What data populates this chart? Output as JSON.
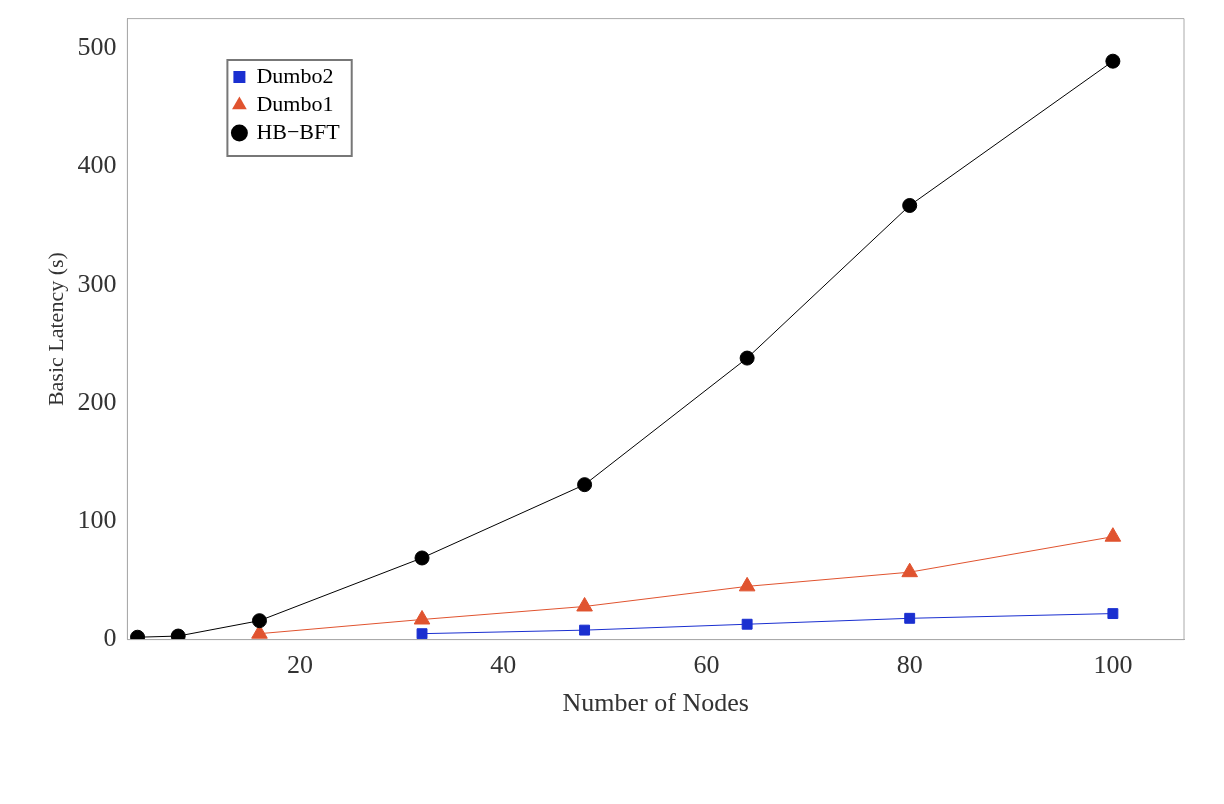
{
  "chart_data": {
    "type": "line",
    "xlabel": "Number of Nodes",
    "ylabel": "Basic Latency (s)",
    "x": [
      4,
      8,
      16,
      32,
      48,
      64,
      80,
      100
    ],
    "series": [
      {
        "name": "Dumbo2",
        "color": "#1a2fd0",
        "marker": "square",
        "values": [
          null,
          null,
          null,
          5,
          8,
          13,
          18,
          22
        ]
      },
      {
        "name": "Dumbo1",
        "color": "#e0532f",
        "marker": "triangle",
        "values": [
          null,
          null,
          5,
          17,
          28,
          45,
          57,
          87
        ]
      },
      {
        "name": "HB−BFT",
        "color": "#000000",
        "marker": "circle",
        "values": [
          2,
          3,
          16,
          69,
          131,
          238,
          367,
          489
        ]
      }
    ],
    "xlim": [
      3,
      107
    ],
    "xticks": [
      20,
      40,
      60,
      80,
      100
    ],
    "ylim": [
      0,
      525
    ],
    "yticks": [
      0,
      100,
      200,
      300,
      400,
      500
    ],
    "legend": "top left",
    "grid": false
  }
}
